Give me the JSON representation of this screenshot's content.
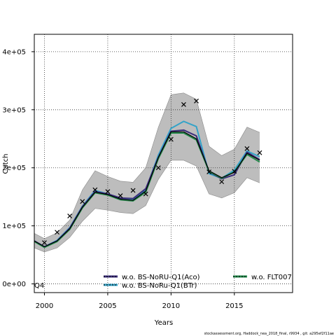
{
  "chart_data": {
    "type": "line",
    "title": "",
    "xlabel": "Years",
    "ylabel": "Catch",
    "xlim": [
      1999.2,
      2019.6
    ],
    "ylim": [
      -15000,
      430000
    ],
    "xticks": [
      2000,
      2005,
      2010,
      2015
    ],
    "xtick_labels": [
      "2000",
      "2005",
      "2010",
      "2015"
    ],
    "yticks": [
      0,
      100000,
      200000,
      300000,
      400000
    ],
    "ytick_labels": [
      "0e+00",
      "1e+05",
      "2e+05",
      "3e+05",
      "4e+05"
    ],
    "grid": true,
    "panel_label": "Q4",
    "footer": "stockassessment.org, Haddock_nea_2018_final, r9934 , git: a295ef2f11ae",
    "legend_position": "bottom",
    "colors": {
      "band": "#bdbdbd",
      "band_edge": "#8a8a8a",
      "base": "#000000",
      "s_aco": "#3a2c7a",
      "s_btr": "#33a3c8",
      "s_flt": "#22884a"
    },
    "years": [
      1999,
      2000,
      2001,
      2002,
      2003,
      2004,
      2005,
      2006,
      2007,
      2008,
      2009,
      2010,
      2011,
      2012,
      2013,
      2014,
      2015,
      2016,
      2017
    ],
    "band": {
      "upper": [
        87000,
        78000,
        88000,
        110000,
        162000,
        195000,
        185000,
        177000,
        175000,
        200000,
        270000,
        326000,
        329000,
        318000,
        237000,
        221000,
        232000,
        270000,
        261000
      ],
      "lower": [
        62000,
        55000,
        62000,
        80000,
        108000,
        130000,
        127000,
        123000,
        121000,
        135000,
        180000,
        213000,
        213000,
        203000,
        155000,
        148000,
        157000,
        183000,
        174000
      ]
    },
    "series": [
      {
        "values": [
          74000,
          64000,
          74000,
          95000,
          132000,
          158000,
          154000,
          146000,
          144000,
          160000,
          218000,
          262000,
          262000,
          250000,
          195000,
          183000,
          192000,
          225000,
          213000
        ]
      },
      {
        "name": "w.o. BS-NoRU-Q1(Aco)",
        "values": [
          74000,
          64000,
          74000,
          96000,
          133000,
          159000,
          155000,
          148000,
          147000,
          164000,
          218000,
          263000,
          265000,
          255000,
          193000,
          181000,
          188000,
          227000,
          214000
        ]
      },
      {
        "name": "w.o. BS-NoRu-Q1(BTr)",
        "values": [
          74000,
          64000,
          75000,
          97000,
          134000,
          161000,
          155000,
          148000,
          146000,
          162000,
          222000,
          268000,
          280000,
          271000,
          190000,
          182000,
          196000,
          229000,
          219000
        ]
      },
      {
        "name": "w.o. FLT007",
        "values": [
          73000,
          63000,
          73000,
          94000,
          131000,
          157000,
          153000,
          145000,
          143000,
          158000,
          216000,
          260000,
          260000,
          248000,
          194000,
          182000,
          193000,
          223000,
          210000
        ]
      }
    ],
    "observed": {
      "years": [
        2000,
        2001,
        2002,
        2003,
        2004,
        2005,
        2006,
        2007,
        2008,
        2009,
        2010,
        2011,
        2012,
        2013,
        2014,
        2015,
        2016,
        2017
      ],
      "values": [
        71000,
        89000,
        117000,
        142000,
        162000,
        159000,
        152000,
        161000,
        155000,
        200000,
        249000,
        309000,
        315000,
        193000,
        176000,
        194000,
        233000,
        226000
      ]
    }
  }
}
